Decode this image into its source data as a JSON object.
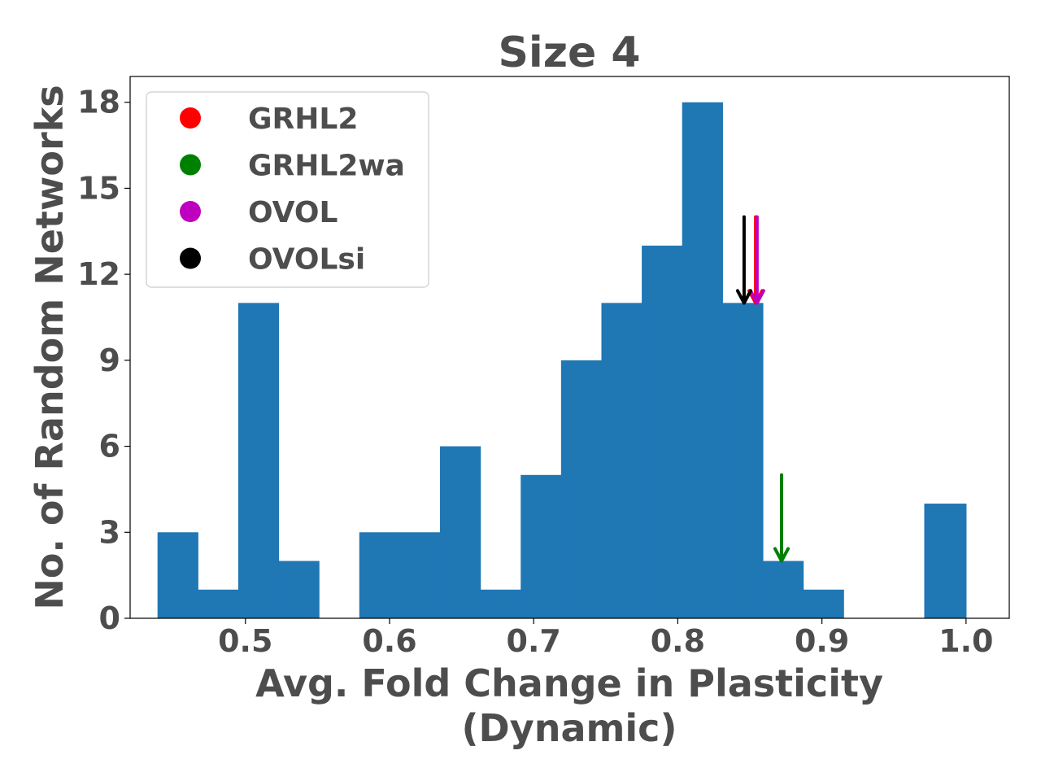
{
  "chart_data": {
    "type": "bar",
    "title": "Size 4",
    "xlabel_lines": [
      "Avg. Fold Change in Plasticity",
      "(Dynamic)"
    ],
    "ylabel": "No. of Random Networks",
    "xlim": [
      0.42,
      1.03
    ],
    "ylim": [
      0,
      18.9
    ],
    "xticks": [
      0.5,
      0.6,
      0.7,
      0.8,
      0.9,
      1.0
    ],
    "xtick_labels": [
      "0.5",
      "0.6",
      "0.7",
      "0.8",
      "0.9",
      "1.0"
    ],
    "yticks": [
      0,
      3,
      6,
      9,
      12,
      15,
      18
    ],
    "ytick_labels": [
      "0",
      "3",
      "6",
      "9",
      "12",
      "15",
      "18"
    ],
    "bar_color": "#1f77b4",
    "bins": [
      {
        "start": 0.439,
        "end": 0.467,
        "count": 3
      },
      {
        "start": 0.467,
        "end": 0.495,
        "count": 1
      },
      {
        "start": 0.495,
        "end": 0.523,
        "count": 11
      },
      {
        "start": 0.523,
        "end": 0.551,
        "count": 2
      },
      {
        "start": 0.551,
        "end": 0.579,
        "count": 0
      },
      {
        "start": 0.579,
        "end": 0.607,
        "count": 3
      },
      {
        "start": 0.607,
        "end": 0.635,
        "count": 3
      },
      {
        "start": 0.635,
        "end": 0.663,
        "count": 6
      },
      {
        "start": 0.663,
        "end": 0.691,
        "count": 1
      },
      {
        "start": 0.691,
        "end": 0.719,
        "count": 5
      },
      {
        "start": 0.719,
        "end": 0.747,
        "count": 9
      },
      {
        "start": 0.747,
        "end": 0.775,
        "count": 11
      },
      {
        "start": 0.775,
        "end": 0.803,
        "count": 13
      },
      {
        "start": 0.803,
        "end": 0.831,
        "count": 18
      },
      {
        "start": 0.831,
        "end": 0.859,
        "count": 11
      },
      {
        "start": 0.859,
        "end": 0.887,
        "count": 2
      },
      {
        "start": 0.887,
        "end": 0.915,
        "count": 1
      },
      {
        "start": 0.915,
        "end": 0.943,
        "count": 0
      },
      {
        "start": 0.943,
        "end": 0.971,
        "count": 0
      },
      {
        "start": 0.971,
        "end": 1.0,
        "count": 4
      }
    ],
    "markers": [
      {
        "name": "GRHL2",
        "color": "#ff0000",
        "x": 0.854,
        "y_top": 14,
        "y_tip": 11
      },
      {
        "name": "GRHL2wa",
        "color": "#008000",
        "x": 0.872,
        "y_top": 5,
        "y_tip": 2
      },
      {
        "name": "OVOL",
        "color": "#bf00bf",
        "x": 0.855,
        "y_top": 14,
        "y_tip": 11
      },
      {
        "name": "OVOLsi",
        "color": "#000000",
        "x": 0.846,
        "y_top": 14,
        "y_tip": 11
      }
    ],
    "legend_placement": "top-left",
    "grid": false
  }
}
